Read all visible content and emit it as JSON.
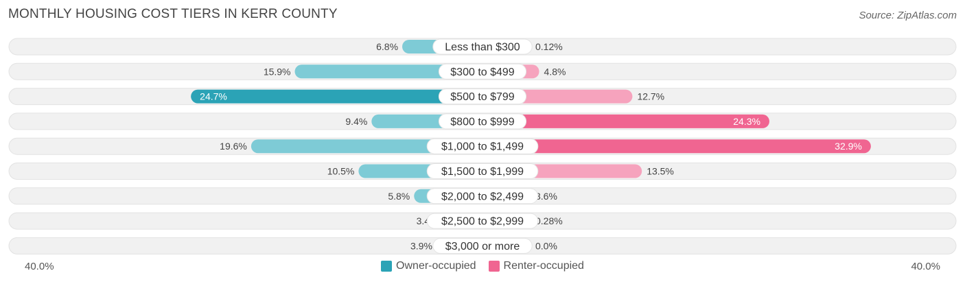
{
  "header": {
    "title": "MONTHLY HOUSING COST TIERS IN KERR COUNTY",
    "source": "Source: ZipAtlas.com"
  },
  "colors": {
    "owner_dark": "#2ba3b6",
    "owner_light": "#7ecbd6",
    "renter_dark": "#f06591",
    "renter_light": "#f6a3bd",
    "row_bg": "#f1f1f1"
  },
  "chart_data": {
    "type": "bar",
    "orientation": "horizontal-diverging",
    "title": "MONTHLY HOUSING COST TIERS IN KERR COUNTY",
    "categories": [
      "Less than $300",
      "$300 to $499",
      "$500 to $799",
      "$800 to $999",
      "$1,000 to $1,499",
      "$1,500 to $1,999",
      "$2,000 to $2,499",
      "$2,500 to $2,999",
      "$3,000 or more"
    ],
    "series": [
      {
        "name": "Owner-occupied",
        "values": [
          6.8,
          15.9,
          24.7,
          9.4,
          19.6,
          10.5,
          5.8,
          3.4,
          3.9
        ],
        "labels": [
          "6.8%",
          "15.9%",
          "24.7%",
          "9.4%",
          "19.6%",
          "10.5%",
          "5.8%",
          "3.4%",
          "3.9%"
        ]
      },
      {
        "name": "Renter-occupied",
        "values": [
          0.12,
          4.8,
          12.7,
          24.3,
          32.9,
          13.5,
          3.6,
          0.28,
          0.0
        ],
        "labels": [
          "0.12%",
          "4.8%",
          "12.7%",
          "24.3%",
          "32.9%",
          "13.5%",
          "3.6%",
          "0.28%",
          "0.0%"
        ]
      }
    ],
    "axis_max": 40.0,
    "axis_min_label": "40.0%",
    "axis_max_label": "40.0%",
    "legend": [
      "Owner-occupied",
      "Renter-occupied"
    ],
    "legend_position": "bottom-center"
  }
}
